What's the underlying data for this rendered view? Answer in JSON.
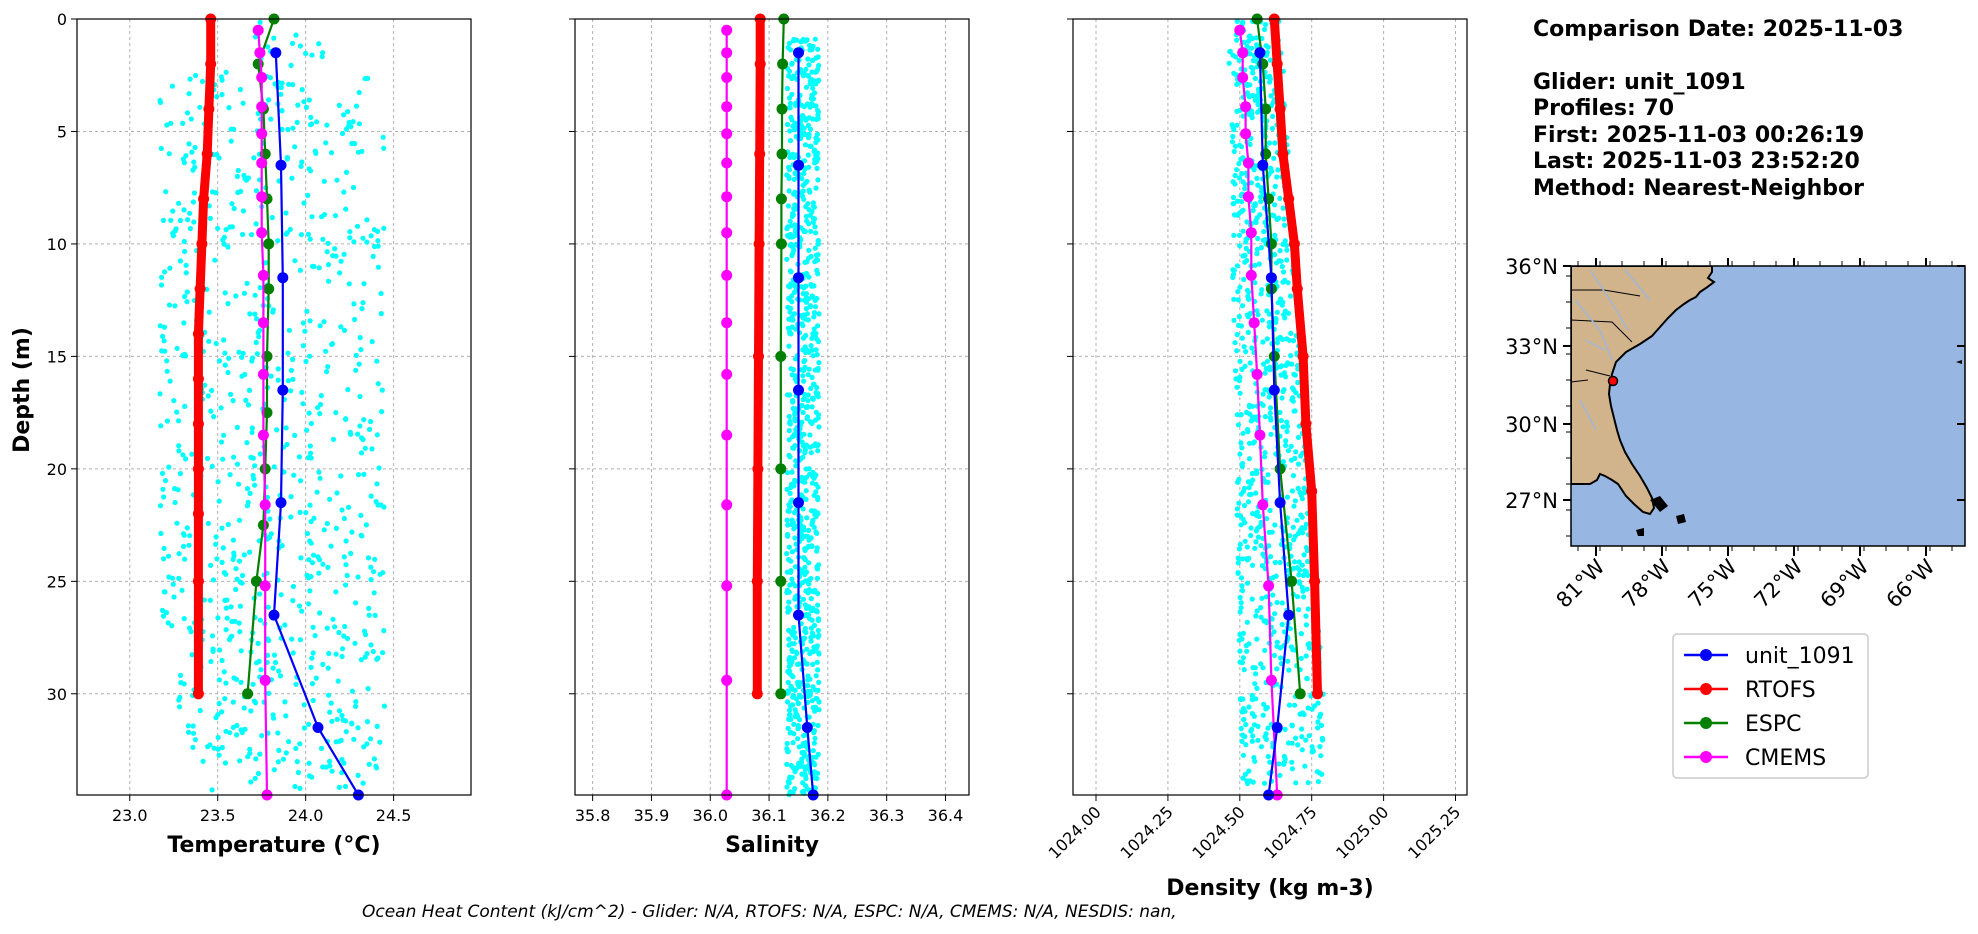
{
  "chart_data": [
    {
      "type": "line",
      "xlabel": "Temperature (°C)",
      "ylabel": "Depth (m)",
      "xlim": [
        22.7,
        24.94
      ],
      "ylim": [
        34.5,
        0
      ],
      "xticks": [
        "23.0",
        "23.5",
        "24.0",
        "24.5"
      ],
      "yticks": [
        "0",
        "5",
        "10",
        "15",
        "20",
        "25",
        "30"
      ],
      "grid": true,
      "scatter": {
        "color": "#00ffff",
        "xmin": 23.17,
        "xmax": 24.45,
        "depth_max": 34.3
      },
      "series": [
        {
          "name": "unit_1091",
          "color": "#0000ff",
          "x": [
            23.83,
            23.86,
            23.87,
            23.87,
            23.86,
            23.82,
            24.07,
            24.3
          ],
          "y": [
            1.5,
            6.5,
            11.5,
            16.5,
            21.5,
            26.5,
            31.5,
            34.5
          ]
        },
        {
          "name": "RTOFS",
          "color": "#ff0000",
          "x": [
            23.46,
            23.46,
            23.45,
            23.44,
            23.42,
            23.41,
            23.4,
            23.39,
            23.39,
            23.39,
            23.39,
            23.39,
            23.39,
            23.39
          ],
          "y": [
            0,
            2,
            4,
            6,
            8,
            10,
            12,
            14,
            16,
            18,
            20,
            22,
            25,
            30
          ]
        },
        {
          "name": "ESPC",
          "color": "#008000",
          "x": [
            23.82,
            23.73,
            23.76,
            23.77,
            23.78,
            23.79,
            23.79,
            23.78,
            23.78,
            23.77,
            23.76,
            23.72,
            23.67
          ],
          "y": [
            0,
            2,
            4,
            6,
            8,
            10,
            12,
            15,
            17.5,
            20,
            22.5,
            25,
            30
          ]
        },
        {
          "name": "CMEMS",
          "color": "#ff00ff",
          "x": [
            23.73,
            23.74,
            23.75,
            23.75,
            23.75,
            23.75,
            23.75,
            23.75,
            23.76,
            23.76,
            23.76,
            23.76,
            23.77,
            23.77,
            23.77,
            23.78
          ],
          "y": [
            0.5,
            1.5,
            2.6,
            3.9,
            5.1,
            6.4,
            7.9,
            9.5,
            11.4,
            13.5,
            15.8,
            18.5,
            21.6,
            25.2,
            29.4,
            34.5
          ]
        }
      ]
    },
    {
      "type": "line",
      "xlabel": "Salinity",
      "xlim": [
        35.77,
        36.44
      ],
      "ylim": [
        34.5,
        0
      ],
      "xticks": [
        "35.8",
        "35.9",
        "36.0",
        "36.1",
        "36.2",
        "36.3",
        "36.4"
      ],
      "grid": true,
      "scatter": {
        "color": "#00ffff",
        "xmin": 36.13,
        "xmax": 36.185,
        "depth_max": 34.5
      },
      "series": [
        {
          "name": "unit_1091",
          "color": "#0000ff",
          "x": [
            36.15,
            36.15,
            36.15,
            36.15,
            36.15,
            36.15,
            36.165,
            36.175
          ],
          "y": [
            1.5,
            6.5,
            11.5,
            16.5,
            21.5,
            26.5,
            31.5,
            34.5
          ]
        },
        {
          "name": "RTOFS",
          "color": "#ff0000",
          "x": [
            36.085,
            36.085,
            36.084,
            36.083,
            36.082,
            36.081,
            36.08,
            36.08
          ],
          "y": [
            0,
            2,
            6,
            10,
            15,
            20,
            25,
            30
          ]
        },
        {
          "name": "ESPC",
          "color": "#008000",
          "x": [
            36.125,
            36.123,
            36.122,
            36.122,
            36.121,
            36.121,
            36.12,
            36.12,
            36.12,
            36.12
          ],
          "y": [
            0,
            2,
            4,
            6,
            8,
            10,
            15,
            20,
            25,
            30
          ]
        },
        {
          "name": "CMEMS",
          "color": "#ff00ff",
          "x": [
            36.028,
            36.028,
            36.028,
            36.028,
            36.028,
            36.028,
            36.028,
            36.028,
            36.028,
            36.028,
            36.028,
            36.028,
            36.028,
            36.028,
            36.028,
            36.028
          ],
          "y": [
            0.5,
            1.5,
            2.6,
            3.9,
            5.1,
            6.4,
            7.9,
            9.5,
            11.4,
            13.5,
            15.8,
            18.5,
            21.6,
            25.2,
            29.4,
            34.5
          ]
        }
      ]
    },
    {
      "type": "line",
      "xlabel": "Density (kg m-3)",
      "xlim": [
        1023.92,
        1025.29
      ],
      "ylim": [
        34.5,
        0
      ],
      "xticks": [
        "1024.00",
        "1024.25",
        "1024.50",
        "1024.75",
        "1025.00",
        "1025.25"
      ],
      "grid": true,
      "scatter": {
        "color": "#00ffff",
        "xmin_top": 1024.46,
        "xmax_top": 1024.64,
        "xmin_bottom": 1024.5,
        "xmax_bottom": 1024.79,
        "depth_max": 34.0
      },
      "series": [
        {
          "name": "unit_1091",
          "color": "#0000ff",
          "x": [
            1024.57,
            1024.58,
            1024.61,
            1024.62,
            1024.64,
            1024.67,
            1024.63,
            1024.6
          ],
          "y": [
            1.5,
            6.5,
            11.5,
            16.5,
            21.5,
            26.5,
            31.5,
            34.5
          ]
        },
        {
          "name": "RTOFS",
          "color": "#ff0000",
          "x": [
            1024.62,
            1024.63,
            1024.64,
            1024.65,
            1024.67,
            1024.69,
            1024.7,
            1024.72,
            1024.73,
            1024.75,
            1024.76,
            1024.77
          ],
          "y": [
            0,
            2,
            4,
            6,
            8,
            10,
            12,
            15,
            18,
            21,
            25,
            30
          ]
        },
        {
          "name": "ESPC",
          "color": "#008000",
          "x": [
            1024.56,
            1024.58,
            1024.59,
            1024.59,
            1024.6,
            1024.61,
            1024.61,
            1024.62,
            1024.64,
            1024.68,
            1024.71
          ],
          "y": [
            0,
            2,
            4,
            6,
            8,
            10,
            12,
            15,
            20,
            25,
            30
          ]
        },
        {
          "name": "CMEMS",
          "color": "#ff00ff",
          "x": [
            1024.5,
            1024.51,
            1024.51,
            1024.52,
            1024.52,
            1024.53,
            1024.53,
            1024.54,
            1024.54,
            1024.55,
            1024.56,
            1024.57,
            1024.58,
            1024.6,
            1024.61,
            1024.63
          ],
          "y": [
            0.5,
            1.5,
            2.6,
            3.9,
            5.1,
            6.4,
            7.9,
            9.5,
            11.4,
            13.5,
            15.8,
            18.5,
            21.6,
            25.2,
            29.4,
            34.5
          ]
        }
      ]
    }
  ],
  "info": {
    "comparison_date": "Comparison Date: 2025-11-03",
    "glider": "Glider: unit_1091",
    "profiles": "Profiles: 70",
    "first": "First: 2025-11-03 00:26:19",
    "last": "Last: 2025-11-03 23:52:20",
    "method": "Method: Nearest-Neighbor"
  },
  "map": {
    "lat_labels": [
      "36°N",
      "33°N",
      "30°N",
      "27°N"
    ],
    "lon_labels": [
      "81°W",
      "78°W",
      "75°W",
      "72°W",
      "69°W",
      "66°W"
    ],
    "ocean_color": "#97b6e1",
    "land_color": "#d2b48c",
    "glider_marker_color": "#ff0000"
  },
  "legend": {
    "placement": "below-map",
    "entries": [
      {
        "label": "unit_1091",
        "color": "#0000ff"
      },
      {
        "label": "RTOFS",
        "color": "#ff0000"
      },
      {
        "label": "ESPC",
        "color": "#008000"
      },
      {
        "label": "CMEMS",
        "color": "#ff00ff"
      }
    ]
  },
  "footer": "Ocean Heat Content (kJ/cm^2) - Glider: N/A,  RTOFS: N/A,  ESPC: N/A,  CMEMS: N/A,  NESDIS: nan,"
}
